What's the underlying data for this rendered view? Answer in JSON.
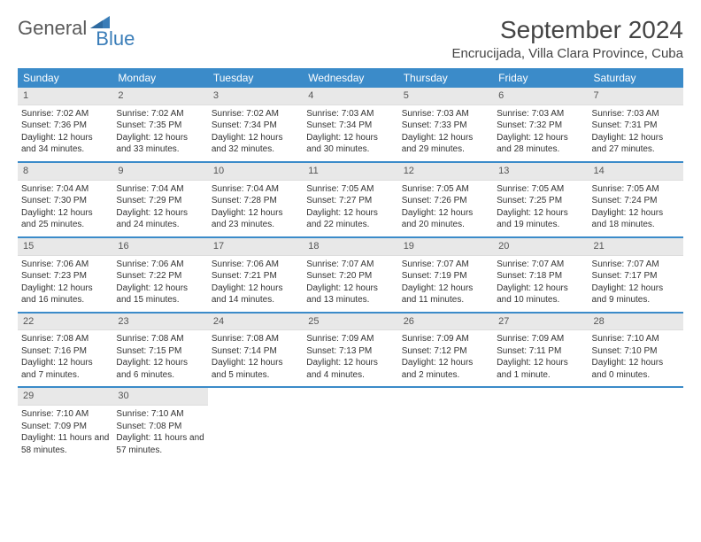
{
  "logo": {
    "part1": "General",
    "part2": "Blue"
  },
  "title": "September 2024",
  "location": "Encrucijada, Villa Clara Province, Cuba",
  "colors": {
    "header_bg": "#3b8bc9",
    "header_text": "#ffffff",
    "daynum_bg": "#e8e8e8",
    "week_border": "#3b8bc9",
    "logo_gray": "#5a5a5a",
    "logo_blue": "#3a7db8",
    "text": "#333333"
  },
  "weekdays": [
    "Sunday",
    "Monday",
    "Tuesday",
    "Wednesday",
    "Thursday",
    "Friday",
    "Saturday"
  ],
  "weeks": [
    [
      {
        "n": "1",
        "sunrise": "7:02 AM",
        "sunset": "7:36 PM",
        "daylight": "12 hours and 34 minutes."
      },
      {
        "n": "2",
        "sunrise": "7:02 AM",
        "sunset": "7:35 PM",
        "daylight": "12 hours and 33 minutes."
      },
      {
        "n": "3",
        "sunrise": "7:02 AM",
        "sunset": "7:34 PM",
        "daylight": "12 hours and 32 minutes."
      },
      {
        "n": "4",
        "sunrise": "7:03 AM",
        "sunset": "7:34 PM",
        "daylight": "12 hours and 30 minutes."
      },
      {
        "n": "5",
        "sunrise": "7:03 AM",
        "sunset": "7:33 PM",
        "daylight": "12 hours and 29 minutes."
      },
      {
        "n": "6",
        "sunrise": "7:03 AM",
        "sunset": "7:32 PM",
        "daylight": "12 hours and 28 minutes."
      },
      {
        "n": "7",
        "sunrise": "7:03 AM",
        "sunset": "7:31 PM",
        "daylight": "12 hours and 27 minutes."
      }
    ],
    [
      {
        "n": "8",
        "sunrise": "7:04 AM",
        "sunset": "7:30 PM",
        "daylight": "12 hours and 25 minutes."
      },
      {
        "n": "9",
        "sunrise": "7:04 AM",
        "sunset": "7:29 PM",
        "daylight": "12 hours and 24 minutes."
      },
      {
        "n": "10",
        "sunrise": "7:04 AM",
        "sunset": "7:28 PM",
        "daylight": "12 hours and 23 minutes."
      },
      {
        "n": "11",
        "sunrise": "7:05 AM",
        "sunset": "7:27 PM",
        "daylight": "12 hours and 22 minutes."
      },
      {
        "n": "12",
        "sunrise": "7:05 AM",
        "sunset": "7:26 PM",
        "daylight": "12 hours and 20 minutes."
      },
      {
        "n": "13",
        "sunrise": "7:05 AM",
        "sunset": "7:25 PM",
        "daylight": "12 hours and 19 minutes."
      },
      {
        "n": "14",
        "sunrise": "7:05 AM",
        "sunset": "7:24 PM",
        "daylight": "12 hours and 18 minutes."
      }
    ],
    [
      {
        "n": "15",
        "sunrise": "7:06 AM",
        "sunset": "7:23 PM",
        "daylight": "12 hours and 16 minutes."
      },
      {
        "n": "16",
        "sunrise": "7:06 AM",
        "sunset": "7:22 PM",
        "daylight": "12 hours and 15 minutes."
      },
      {
        "n": "17",
        "sunrise": "7:06 AM",
        "sunset": "7:21 PM",
        "daylight": "12 hours and 14 minutes."
      },
      {
        "n": "18",
        "sunrise": "7:07 AM",
        "sunset": "7:20 PM",
        "daylight": "12 hours and 13 minutes."
      },
      {
        "n": "19",
        "sunrise": "7:07 AM",
        "sunset": "7:19 PM",
        "daylight": "12 hours and 11 minutes."
      },
      {
        "n": "20",
        "sunrise": "7:07 AM",
        "sunset": "7:18 PM",
        "daylight": "12 hours and 10 minutes."
      },
      {
        "n": "21",
        "sunrise": "7:07 AM",
        "sunset": "7:17 PM",
        "daylight": "12 hours and 9 minutes."
      }
    ],
    [
      {
        "n": "22",
        "sunrise": "7:08 AM",
        "sunset": "7:16 PM",
        "daylight": "12 hours and 7 minutes."
      },
      {
        "n": "23",
        "sunrise": "7:08 AM",
        "sunset": "7:15 PM",
        "daylight": "12 hours and 6 minutes."
      },
      {
        "n": "24",
        "sunrise": "7:08 AM",
        "sunset": "7:14 PM",
        "daylight": "12 hours and 5 minutes."
      },
      {
        "n": "25",
        "sunrise": "7:09 AM",
        "sunset": "7:13 PM",
        "daylight": "12 hours and 4 minutes."
      },
      {
        "n": "26",
        "sunrise": "7:09 AM",
        "sunset": "7:12 PM",
        "daylight": "12 hours and 2 minutes."
      },
      {
        "n": "27",
        "sunrise": "7:09 AM",
        "sunset": "7:11 PM",
        "daylight": "12 hours and 1 minute."
      },
      {
        "n": "28",
        "sunrise": "7:10 AM",
        "sunset": "7:10 PM",
        "daylight": "12 hours and 0 minutes."
      }
    ],
    [
      {
        "n": "29",
        "sunrise": "7:10 AM",
        "sunset": "7:09 PM",
        "daylight": "11 hours and 58 minutes."
      },
      {
        "n": "30",
        "sunrise": "7:10 AM",
        "sunset": "7:08 PM",
        "daylight": "11 hours and 57 minutes."
      },
      null,
      null,
      null,
      null,
      null
    ]
  ],
  "labels": {
    "sunrise": "Sunrise:",
    "sunset": "Sunset:",
    "daylight": "Daylight:"
  }
}
